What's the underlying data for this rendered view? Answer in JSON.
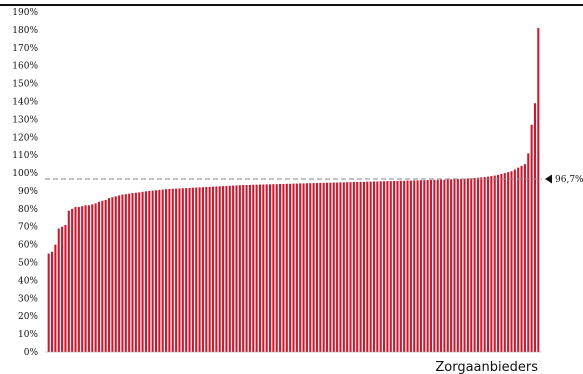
{
  "chart_data": {
    "type": "bar",
    "xlabel": "Zorgaanbieders",
    "ylabel": "",
    "ylim": [
      0,
      190
    ],
    "y_ticks": [
      "0%",
      "10%",
      "20%",
      "30%",
      "40%",
      "50%",
      "60%",
      "70%",
      "80%",
      "90%",
      "100%",
      "110%",
      "120%",
      "130%",
      "140%",
      "150%",
      "160%",
      "170%",
      "180%",
      "190%"
    ],
    "y_tick_values": [
      0,
      10,
      20,
      30,
      40,
      50,
      60,
      70,
      80,
      90,
      100,
      110,
      120,
      130,
      140,
      150,
      160,
      170,
      180,
      190
    ],
    "reference_line": {
      "value": 96.7,
      "label": "96,7%"
    },
    "bar_color": "#d4142a",
    "grid": false,
    "values": [
      55,
      56,
      60,
      69,
      70,
      71,
      79,
      80,
      81,
      81,
      81.5,
      82,
      82,
      82.5,
      83,
      84,
      84.5,
      85,
      86,
      86.5,
      87,
      87.5,
      88,
      88.2,
      88.5,
      88.8,
      89,
      89.2,
      89.5,
      89.8,
      90,
      90.2,
      90.4,
      90.6,
      90.8,
      91,
      91.1,
      91.2,
      91.3,
      91.4,
      91.5,
      91.6,
      91.7,
      91.8,
      91.9,
      92,
      92.1,
      92.2,
      92.3,
      92.4,
      92.5,
      92.6,
      92.7,
      92.8,
      92.9,
      93,
      93.1,
      93.2,
      93.3,
      93.3,
      93.4,
      93.5,
      93.5,
      93.6,
      93.6,
      93.7,
      93.7,
      93.8,
      93.8,
      93.9,
      93.9,
      94,
      94,
      94.1,
      94.1,
      94.2,
      94.2,
      94.3,
      94.3,
      94.4,
      94.4,
      94.5,
      94.5,
      94.6,
      94.6,
      94.7,
      94.7,
      94.8,
      94.8,
      94.9,
      94.9,
      95,
      95,
      95.1,
      95.1,
      95.2,
      95.2,
      95.3,
      95.3,
      95.4,
      95.4,
      95.5,
      95.5,
      95.6,
      95.6,
      95.7,
      95.7,
      95.8,
      95.8,
      95.9,
      95.9,
      96,
      96,
      96.1,
      96.1,
      96.2,
      96.2,
      96.3,
      96.3,
      96.4,
      96.5,
      96.6,
      96.7,
      96.8,
      96.9,
      97,
      97.1,
      97.2,
      97.4,
      97.6,
      97.8,
      98,
      98.3,
      98.6,
      99,
      99.5,
      100,
      100.5,
      101,
      102,
      103,
      104,
      105,
      111,
      127,
      139,
      181
    ]
  }
}
